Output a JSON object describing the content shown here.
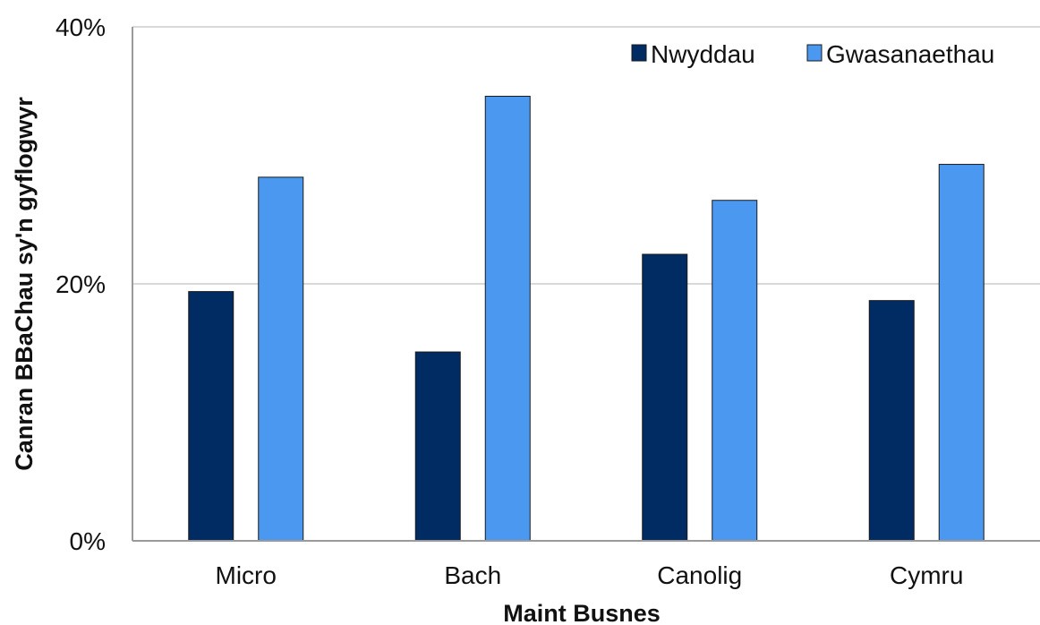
{
  "chart_data": {
    "type": "bar",
    "title": "",
    "xlabel": "Maint Busnes",
    "ylabel": "Canran BBaChau sy'n gyflogwyr",
    "categories": [
      "Micro",
      "Bach",
      "Canolig",
      "Cymru"
    ],
    "series": [
      {
        "name": "Nwyddau",
        "values": [
          19.4,
          14.7,
          22.3,
          18.7
        ],
        "color": "#002b63"
      },
      {
        "name": "Gwasanaethau",
        "values": [
          28.3,
          34.6,
          26.5,
          29.3
        ],
        "color": "#4a98ef"
      }
    ],
    "ylim": [
      0,
      40
    ],
    "yticks": [
      {
        "value": 0,
        "label": "0%"
      },
      {
        "value": 20,
        "label": "20%"
      },
      {
        "value": 40,
        "label": "40%"
      }
    ],
    "grid": true,
    "legend_position": "top-right"
  }
}
